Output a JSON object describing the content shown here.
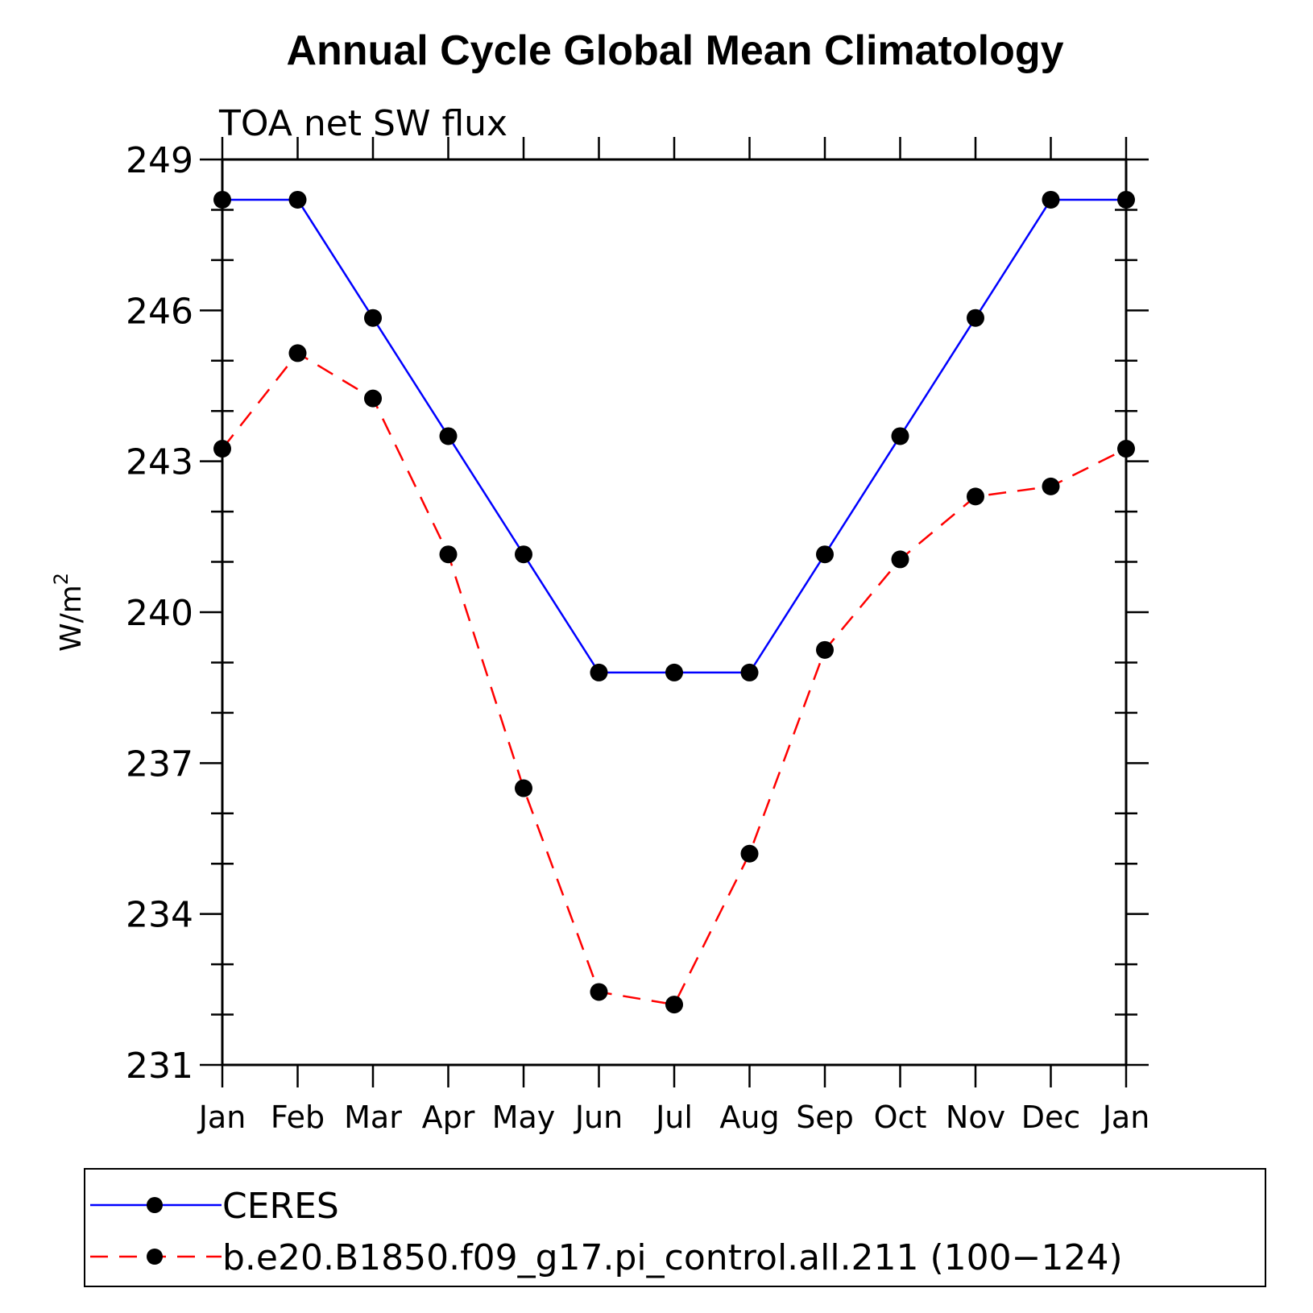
{
  "chart_data": {
    "type": "line",
    "title": "Annual Cycle Global Mean Climatology",
    "subtitle": "TOA net SW flux",
    "ylabel": "W/m",
    "ylabel_superscript": "2",
    "xlabel": "",
    "ylim": [
      231,
      249
    ],
    "yticks": [
      231,
      234,
      237,
      240,
      243,
      246,
      249
    ],
    "y_minor_step": 1,
    "categories": [
      "Jan",
      "Feb",
      "Mar",
      "Apr",
      "May",
      "Jun",
      "Jul",
      "Aug",
      "Sep",
      "Oct",
      "Nov",
      "Dec",
      "Jan"
    ],
    "series": [
      {
        "name": "CERES",
        "color": "#0000ff",
        "dash": "solid",
        "values": [
          248.2,
          248.2,
          245.85,
          243.5,
          241.15,
          238.8,
          238.8,
          238.8,
          241.15,
          243.5,
          245.85,
          248.2,
          248.2
        ]
      },
      {
        "name": "b.e20.B1850.f09_g17.pi_control.all.211 (100−124)",
        "color": "#ff0000",
        "dash": "dashed",
        "values": [
          243.25,
          245.15,
          244.25,
          241.15,
          236.5,
          232.45,
          232.2,
          235.2,
          239.25,
          241.05,
          242.3,
          242.5,
          243.25
        ]
      }
    ],
    "legend_position": "bottom"
  }
}
